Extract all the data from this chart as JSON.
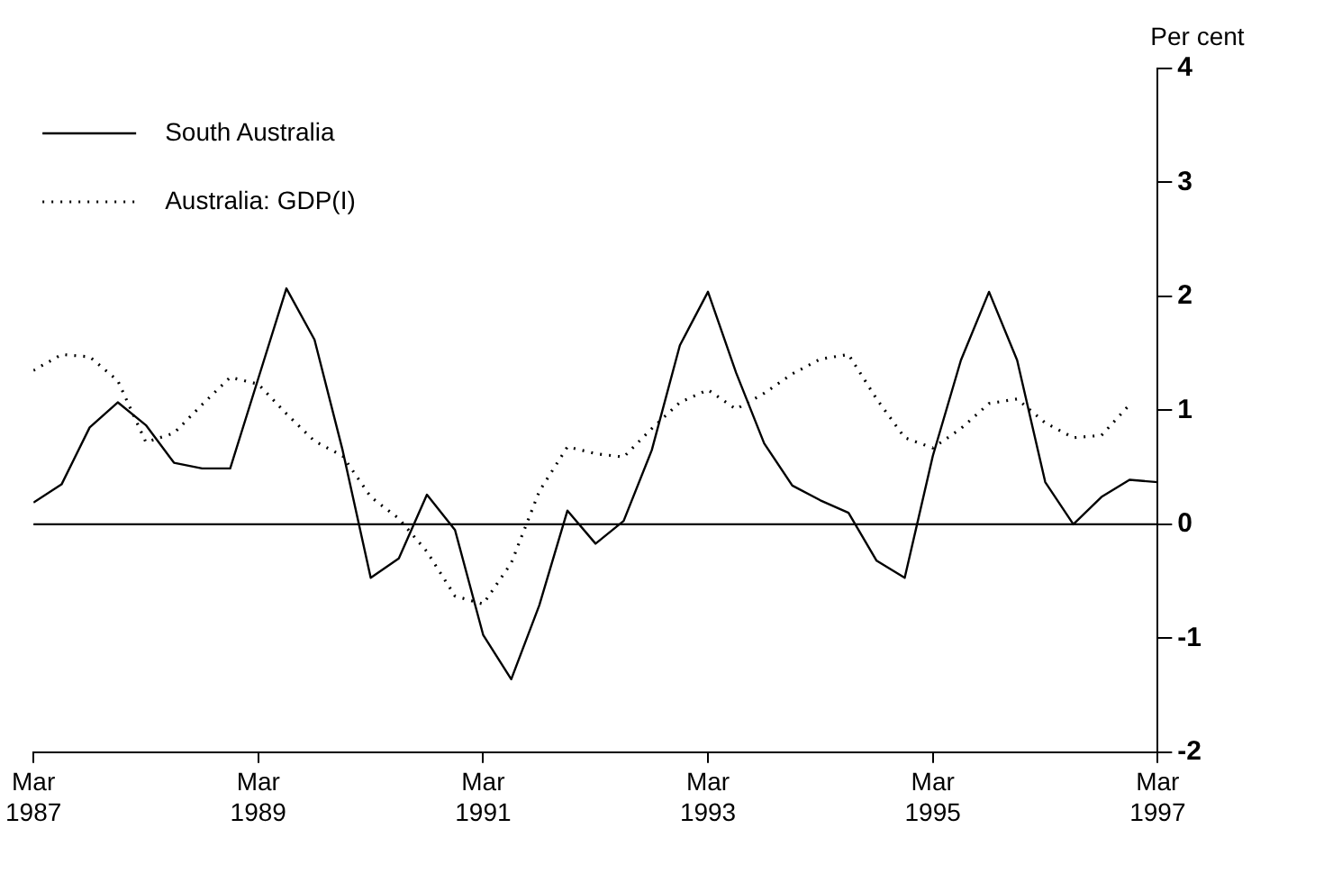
{
  "chart_data": {
    "type": "line",
    "ylabel": "Per cent",
    "x": [
      "1987-03",
      "1987-06",
      "1987-09",
      "1987-12",
      "1988-03",
      "1988-06",
      "1988-09",
      "1988-12",
      "1989-03",
      "1989-06",
      "1989-09",
      "1989-12",
      "1990-03",
      "1990-06",
      "1990-09",
      "1990-12",
      "1991-03",
      "1991-06",
      "1991-09",
      "1991-12",
      "1992-03",
      "1992-06",
      "1992-09",
      "1992-12",
      "1993-03",
      "1993-06",
      "1993-09",
      "1993-12",
      "1994-03",
      "1994-06",
      "1994-09",
      "1994-12",
      "1995-03",
      "1995-06",
      "1995-09",
      "1995-12",
      "1996-03",
      "1996-06",
      "1996-09",
      "1996-12",
      "1997-03"
    ],
    "series": [
      {
        "name": "South Australia",
        "color": "#000000",
        "line_style": "solid",
        "values": [
          0.19,
          0.35,
          0.85,
          1.07,
          0.87,
          0.54,
          0.49,
          0.49,
          1.28,
          2.07,
          1.62,
          0.65,
          -0.47,
          -0.3,
          0.26,
          -0.05,
          -0.97,
          -1.36,
          -0.71,
          0.12,
          -0.17,
          0.03,
          0.65,
          1.57,
          2.04,
          1.33,
          0.71,
          0.34,
          0.21,
          0.1,
          -0.32,
          -0.47,
          0.6,
          1.44,
          2.04,
          1.44,
          0.37,
          0,
          0.24,
          0.39,
          0.37
        ]
      },
      {
        "name": "Australia: GDP(I)",
        "color": "#000000",
        "line_style": "dotted",
        "values": [
          1.35,
          1.49,
          1.47,
          1.26,
          0.72,
          0.8,
          1.05,
          1.29,
          1.23,
          0.97,
          0.73,
          0.6,
          0.24,
          0.05,
          -0.24,
          -0.63,
          -0.7,
          -0.34,
          0.29,
          0.68,
          0.62,
          0.59,
          0.84,
          1.07,
          1.18,
          1.01,
          1.15,
          1.32,
          1.45,
          1.49,
          1.1,
          0.76,
          0.67,
          0.84,
          1.06,
          1.1,
          0.89,
          0.76,
          0.78,
          1.05,
          null
        ]
      }
    ],
    "xlim": [
      "1987-03",
      "1997-03"
    ],
    "xticks": [
      {
        "value": "1987-03",
        "label": "Mar 1987"
      },
      {
        "value": "1989-03",
        "label": "Mar 1989"
      },
      {
        "value": "1991-03",
        "label": "Mar 1991"
      },
      {
        "value": "1993-03",
        "label": "Mar 1993"
      },
      {
        "value": "1995-03",
        "label": "Mar 1995"
      },
      {
        "value": "1997-03",
        "label": "Mar 1997"
      }
    ],
    "ylim": [
      -2,
      4
    ],
    "yticks": [
      -2,
      -1,
      0,
      1,
      2,
      3,
      4
    ],
    "ref_lines": [
      {
        "axis": "y",
        "value": 0,
        "color": "#000000"
      }
    ],
    "grid": false,
    "legend": "top left",
    "marker": "none"
  }
}
